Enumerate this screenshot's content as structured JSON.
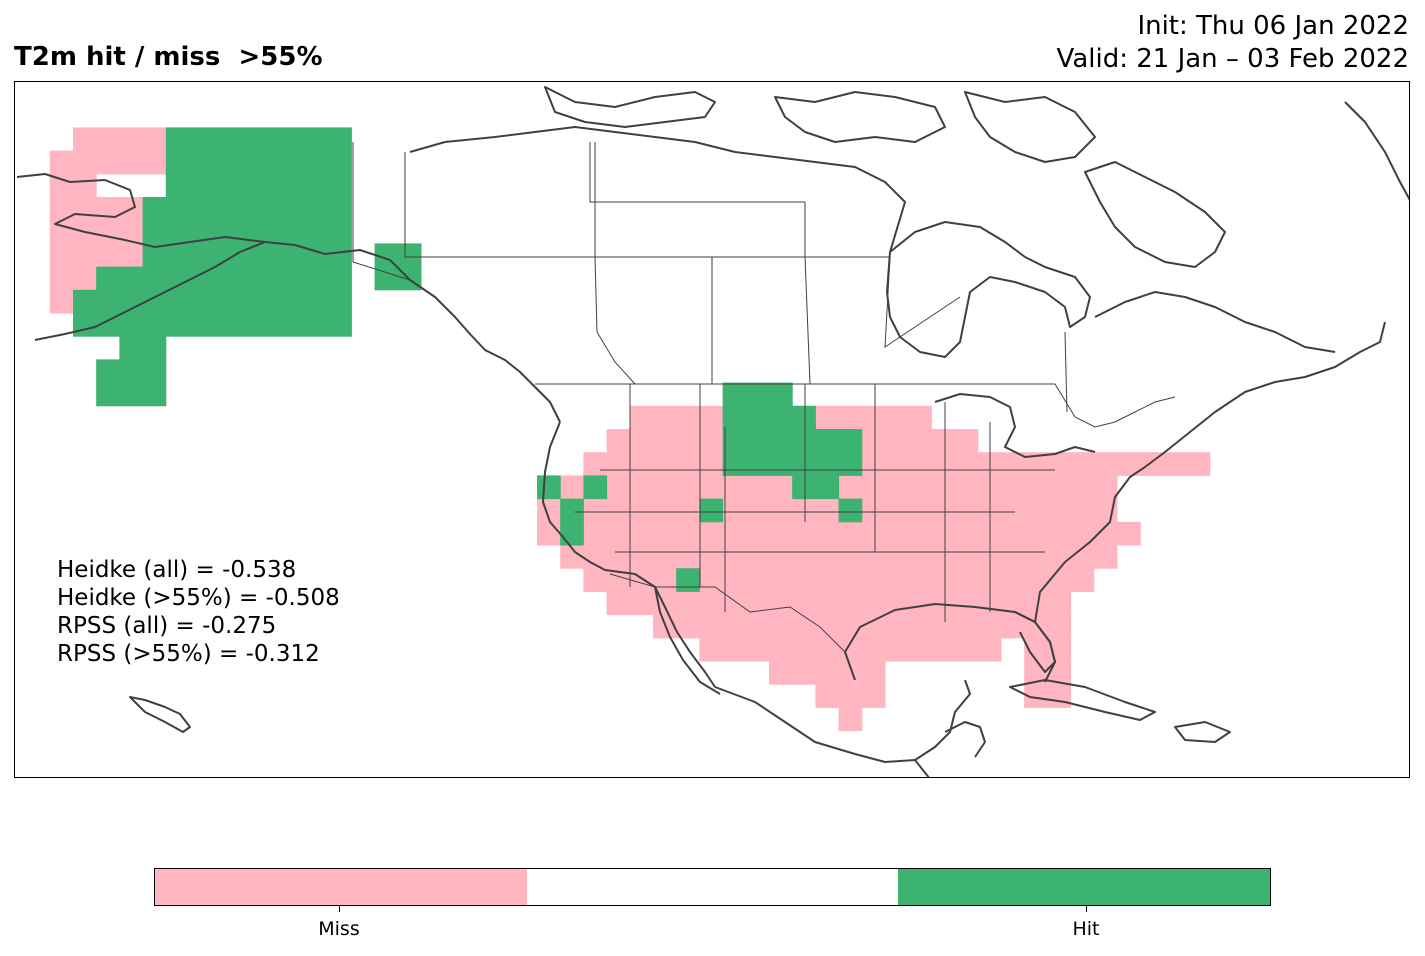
{
  "title": "T2m hit / miss  >55%",
  "init": "Init: Thu 06 Jan 2022",
  "valid": "Valid: 21 Jan – 03 Feb 2022",
  "scores": [
    "Heidke (all) = -0.538",
    "Heidke (>55%) = -0.508",
    "RPSS (all) = -0.275",
    "RPSS (>55%) = -0.312"
  ],
  "colors": {
    "miss": "#ffb6c1",
    "neutral": "#ffffff",
    "hit": "#3cb371",
    "coast": "#404040"
  },
  "legend": {
    "miss_label": "Miss",
    "hit_label": "Hit"
  }
}
